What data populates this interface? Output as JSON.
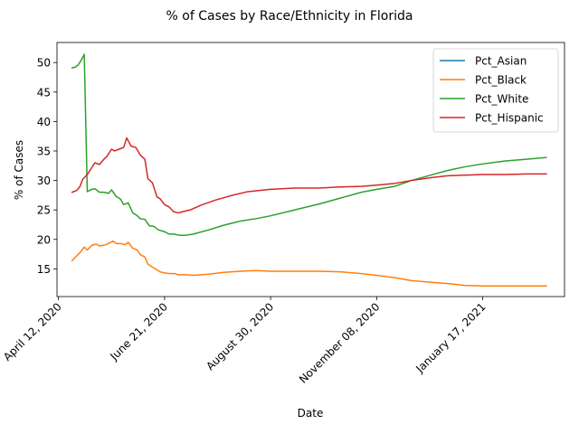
{
  "chart_data": {
    "type": "line",
    "title": "% of Cases by Race/Ethnicity in Florida",
    "xlabel": "Date",
    "ylabel": "% of Cases",
    "x_tick_labels": [
      "April 12, 2020",
      "June 21, 2020",
      "August 30, 2020",
      "November 08, 2020",
      "January 17, 2021"
    ],
    "x_tick_dates": [
      "2020-04-12",
      "2020-06-21",
      "2020-08-30",
      "2020-11-08",
      "2021-01-17"
    ],
    "xlim": [
      "2020-04-11",
      "2021-03-12"
    ],
    "y_ticks": [
      15,
      20,
      25,
      30,
      35,
      40,
      45,
      50
    ],
    "ylim": [
      10.3,
      53.4
    ],
    "grid": false,
    "legend_position": "top-right",
    "series": [
      {
        "name": "Pct_Asian",
        "color": "#1f77b4",
        "points": []
      },
      {
        "name": "Pct_Black",
        "color": "#ff7f0e",
        "points": [
          [
            "2020-04-21",
            16.4
          ],
          [
            "2020-04-24",
            17.2
          ],
          [
            "2020-04-27",
            18.0
          ],
          [
            "2020-04-29",
            18.7
          ],
          [
            "2020-05-01",
            18.2
          ],
          [
            "2020-05-04",
            19.0
          ],
          [
            "2020-05-07",
            19.2
          ],
          [
            "2020-05-09",
            18.9
          ],
          [
            "2020-05-12",
            19.0
          ],
          [
            "2020-05-15",
            19.3
          ],
          [
            "2020-05-18",
            19.7
          ],
          [
            "2020-05-20",
            19.3
          ],
          [
            "2020-05-23",
            19.3
          ],
          [
            "2020-05-26",
            19.1
          ],
          [
            "2020-05-28",
            19.5
          ],
          [
            "2020-05-31",
            18.5
          ],
          [
            "2020-06-03",
            18.2
          ],
          [
            "2020-06-05",
            17.4
          ],
          [
            "2020-06-08",
            17.0
          ],
          [
            "2020-06-10",
            15.8
          ],
          [
            "2020-06-13",
            15.3
          ],
          [
            "2020-06-15",
            15.0
          ],
          [
            "2020-06-18",
            14.5
          ],
          [
            "2020-06-21",
            14.3
          ],
          [
            "2020-06-25",
            14.2
          ],
          [
            "2020-06-28",
            14.2
          ],
          [
            "2020-06-30",
            14.0
          ],
          [
            "2020-07-05",
            14.0
          ],
          [
            "2020-07-10",
            13.9
          ],
          [
            "2020-07-20",
            14.1
          ],
          [
            "2020-07-30",
            14.4
          ],
          [
            "2020-08-10",
            14.6
          ],
          [
            "2020-08-20",
            14.7
          ],
          [
            "2020-08-30",
            14.6
          ],
          [
            "2020-09-15",
            14.6
          ],
          [
            "2020-10-01",
            14.6
          ],
          [
            "2020-10-15",
            14.5
          ],
          [
            "2020-10-29",
            14.2
          ],
          [
            "2020-11-08",
            13.9
          ],
          [
            "2020-11-20",
            13.5
          ],
          [
            "2020-12-01",
            13.0
          ],
          [
            "2020-12-15",
            12.7
          ],
          [
            "2020-12-25",
            12.5
          ],
          [
            "2021-01-05",
            12.2
          ],
          [
            "2021-01-17",
            12.1
          ],
          [
            "2021-02-01",
            12.1
          ],
          [
            "2021-02-15",
            12.1
          ],
          [
            "2021-02-28",
            12.1
          ]
        ]
      },
      {
        "name": "Pct_White",
        "color": "#2ca02c",
        "points": [
          [
            "2020-04-21",
            49.1
          ],
          [
            "2020-04-23",
            49.2
          ],
          [
            "2020-04-25",
            49.6
          ],
          [
            "2020-04-27",
            50.4
          ],
          [
            "2020-04-29",
            51.4
          ],
          [
            "2020-05-01",
            28.1
          ],
          [
            "2020-05-04",
            28.5
          ],
          [
            "2020-05-06",
            28.6
          ],
          [
            "2020-05-09",
            28.0
          ],
          [
            "2020-05-12",
            28.0
          ],
          [
            "2020-05-15",
            27.8
          ],
          [
            "2020-05-17",
            28.4
          ],
          [
            "2020-05-20",
            27.3
          ],
          [
            "2020-05-23",
            26.8
          ],
          [
            "2020-05-25",
            25.9
          ],
          [
            "2020-05-28",
            26.2
          ],
          [
            "2020-05-31",
            24.5
          ],
          [
            "2020-06-03",
            24.0
          ],
          [
            "2020-06-05",
            23.5
          ],
          [
            "2020-06-08",
            23.4
          ],
          [
            "2020-06-11",
            22.3
          ],
          [
            "2020-06-14",
            22.2
          ],
          [
            "2020-06-17",
            21.6
          ],
          [
            "2020-06-21",
            21.3
          ],
          [
            "2020-06-24",
            20.9
          ],
          [
            "2020-06-27",
            20.9
          ],
          [
            "2020-07-01",
            20.7
          ],
          [
            "2020-07-05",
            20.7
          ],
          [
            "2020-07-10",
            20.9
          ],
          [
            "2020-07-20",
            21.6
          ],
          [
            "2020-07-30",
            22.4
          ],
          [
            "2020-08-10",
            23.1
          ],
          [
            "2020-08-20",
            23.5
          ],
          [
            "2020-08-30",
            24.0
          ],
          [
            "2020-09-15",
            25.0
          ],
          [
            "2020-10-01",
            26.0
          ],
          [
            "2020-10-15",
            27.0
          ],
          [
            "2020-10-29",
            28.0
          ],
          [
            "2020-11-08",
            28.5
          ],
          [
            "2020-11-20",
            29.0
          ],
          [
            "2020-12-01",
            30.0
          ],
          [
            "2020-12-15",
            31.0
          ],
          [
            "2020-12-25",
            31.7
          ],
          [
            "2021-01-05",
            32.3
          ],
          [
            "2021-01-17",
            32.8
          ],
          [
            "2021-02-01",
            33.3
          ],
          [
            "2021-02-15",
            33.6
          ],
          [
            "2021-02-28",
            33.9
          ]
        ]
      },
      {
        "name": "Pct_Hispanic",
        "color": "#d62728",
        "points": [
          [
            "2020-04-21",
            28.0
          ],
          [
            "2020-04-24",
            28.3
          ],
          [
            "2020-04-26",
            28.9
          ],
          [
            "2020-04-28",
            30.2
          ],
          [
            "2020-05-01",
            31.0
          ],
          [
            "2020-05-04",
            32.2
          ],
          [
            "2020-05-06",
            33.0
          ],
          [
            "2020-05-09",
            32.7
          ],
          [
            "2020-05-12",
            33.6
          ],
          [
            "2020-05-14",
            34.1
          ],
          [
            "2020-05-17",
            35.3
          ],
          [
            "2020-05-19",
            35.0
          ],
          [
            "2020-05-22",
            35.3
          ],
          [
            "2020-05-25",
            35.6
          ],
          [
            "2020-05-27",
            37.2
          ],
          [
            "2020-05-30",
            35.8
          ],
          [
            "2020-06-02",
            35.6
          ],
          [
            "2020-06-05",
            34.3
          ],
          [
            "2020-06-08",
            33.6
          ],
          [
            "2020-06-10",
            30.3
          ],
          [
            "2020-06-13",
            29.6
          ],
          [
            "2020-06-16",
            27.2
          ],
          [
            "2020-06-18",
            26.9
          ],
          [
            "2020-06-21",
            25.9
          ],
          [
            "2020-06-24",
            25.5
          ],
          [
            "2020-06-27",
            24.7
          ],
          [
            "2020-06-30",
            24.5
          ],
          [
            "2020-07-03",
            24.7
          ],
          [
            "2020-07-08",
            25.0
          ],
          [
            "2020-07-15",
            25.8
          ],
          [
            "2020-07-25",
            26.7
          ],
          [
            "2020-08-05",
            27.5
          ],
          [
            "2020-08-15",
            28.1
          ],
          [
            "2020-08-30",
            28.5
          ],
          [
            "2020-09-15",
            28.7
          ],
          [
            "2020-10-01",
            28.7
          ],
          [
            "2020-10-15",
            28.9
          ],
          [
            "2020-10-29",
            29.0
          ],
          [
            "2020-11-08",
            29.2
          ],
          [
            "2020-11-20",
            29.5
          ],
          [
            "2020-12-01",
            30.0
          ],
          [
            "2020-12-15",
            30.5
          ],
          [
            "2020-12-25",
            30.8
          ],
          [
            "2021-01-05",
            30.9
          ],
          [
            "2021-01-17",
            31.0
          ],
          [
            "2021-02-01",
            31.0
          ],
          [
            "2021-02-15",
            31.1
          ],
          [
            "2021-02-28",
            31.1
          ]
        ]
      }
    ]
  }
}
